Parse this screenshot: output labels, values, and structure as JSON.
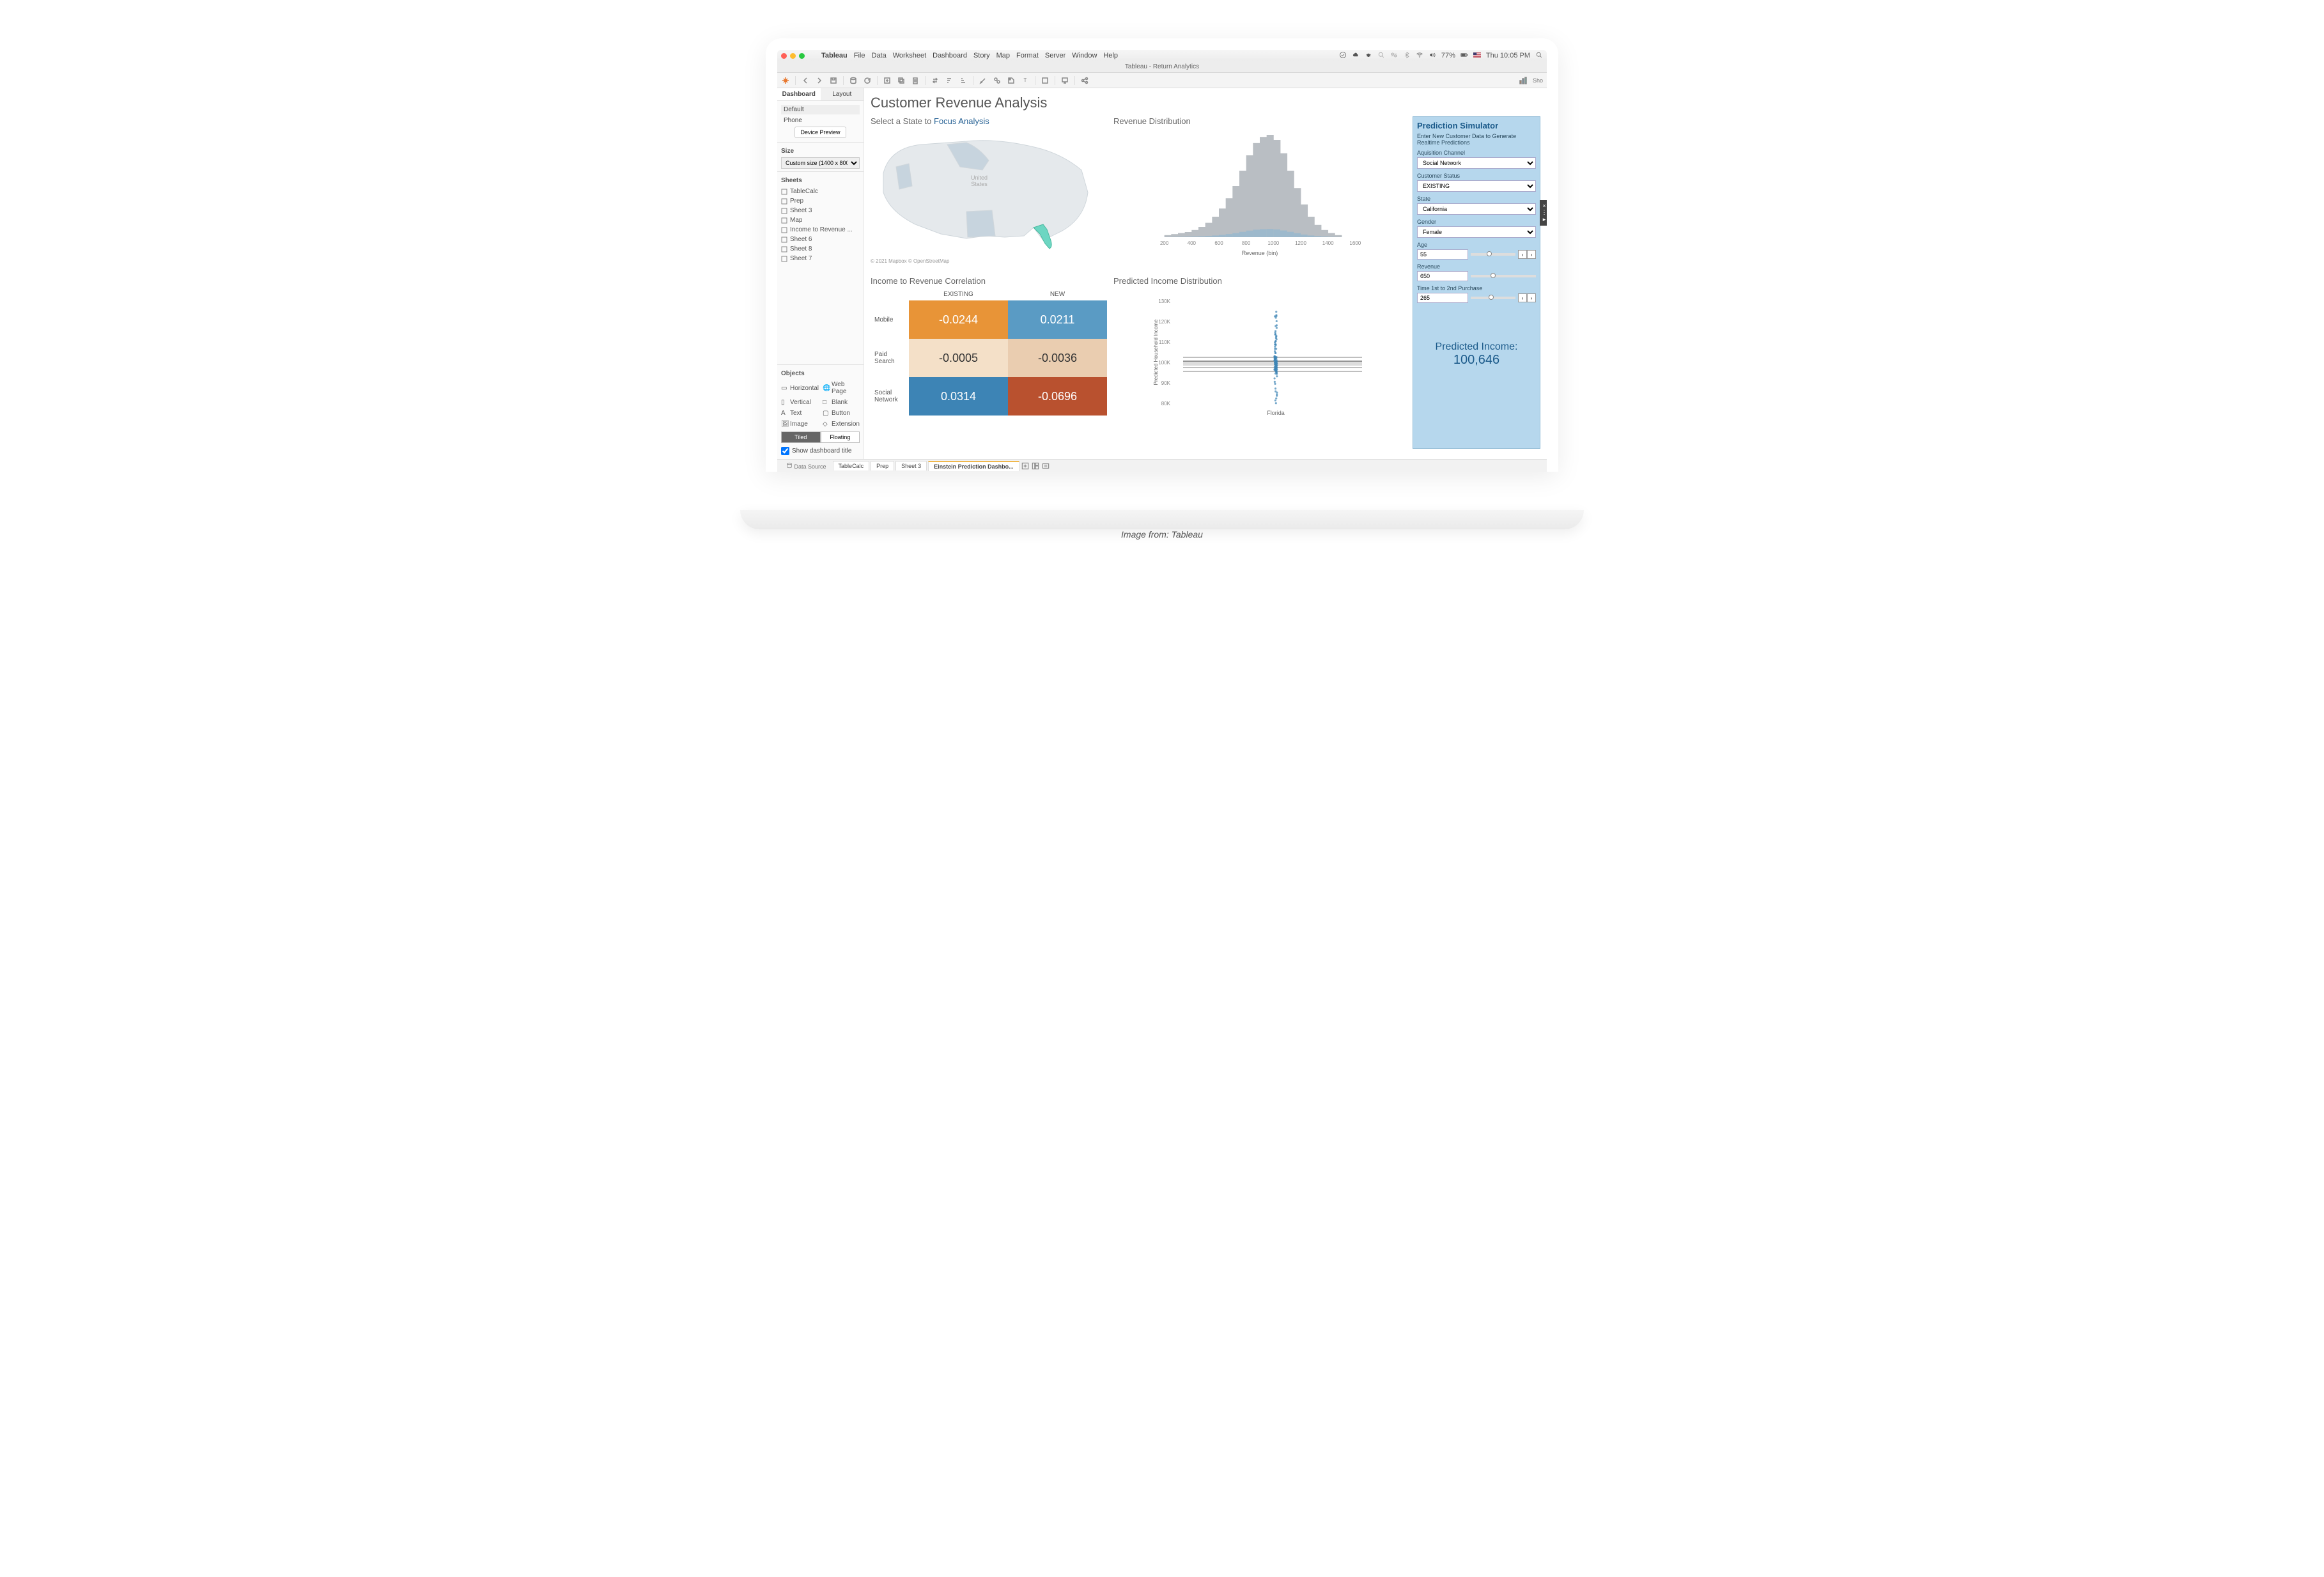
{
  "caption": "Image from: Tableau",
  "menubar": {
    "app": "Tableau",
    "items": [
      "File",
      "Data",
      "Worksheet",
      "Dashboard",
      "Story",
      "Map",
      "Format",
      "Server",
      "Window",
      "Help"
    ],
    "battery": "77%",
    "clock": "Thu 10:05 PM",
    "traffic_colors": [
      "#ff5f57",
      "#febc2e",
      "#28c840"
    ]
  },
  "window_title": "Tableau - Return Analytics",
  "toolbar_show_me": "Sho",
  "leftpanel": {
    "tabs": [
      "Dashboard",
      "Layout"
    ],
    "default_label": "Default",
    "phone_label": "Phone",
    "device_preview": "Device Preview",
    "size_hdr": "Size",
    "size_value": "Custom size (1400 x 800)",
    "sheets_hdr": "Sheets",
    "sheets": [
      "TableCalc",
      "Prep",
      "Sheet 3",
      "Map",
      "Income to Revenue ...",
      "Sheet 6",
      "Sheet 8",
      "Sheet 7"
    ],
    "objects_hdr": "Objects",
    "objects": [
      "Horizontal",
      "Web Page",
      "Vertical",
      "Blank",
      "Text",
      "Button",
      "Image",
      "Extension"
    ],
    "tiled": "Tiled",
    "floating": "Floating",
    "show_title": "Show dashboard title"
  },
  "dashboard": {
    "title": "Customer Revenue Analysis",
    "map": {
      "title_a": "Select a State to ",
      "title_b": "Focus Analysis",
      "credit": "© 2021 Mapbox © OpenStreetMap",
      "center_label": "United\nStates",
      "highlight_color": "#6dd6c2",
      "base_color": "#e5e9ec",
      "accent_color": "#c7d4de"
    },
    "histogram": {
      "title": "Revenue Distribution",
      "type": "histogram",
      "xlabel": "Revenue (bin)",
      "xticks": [
        200,
        400,
        600,
        800,
        1000,
        1200,
        1400,
        1600
      ],
      "bar_color": "#b9bec3",
      "accent_color": "#9db9cc",
      "bins": [
        {
          "x": 200,
          "h": 2
        },
        {
          "x": 250,
          "h": 3
        },
        {
          "x": 300,
          "h": 4
        },
        {
          "x": 350,
          "h": 5
        },
        {
          "x": 400,
          "h": 7
        },
        {
          "x": 450,
          "h": 10
        },
        {
          "x": 500,
          "h": 14
        },
        {
          "x": 550,
          "h": 20
        },
        {
          "x": 600,
          "h": 28
        },
        {
          "x": 650,
          "h": 38
        },
        {
          "x": 700,
          "h": 50
        },
        {
          "x": 750,
          "h": 65
        },
        {
          "x": 800,
          "h": 80
        },
        {
          "x": 850,
          "h": 92
        },
        {
          "x": 900,
          "h": 98
        },
        {
          "x": 950,
          "h": 100
        },
        {
          "x": 1000,
          "h": 95
        },
        {
          "x": 1050,
          "h": 82
        },
        {
          "x": 1100,
          "h": 65
        },
        {
          "x": 1150,
          "h": 48
        },
        {
          "x": 1200,
          "h": 32
        },
        {
          "x": 1250,
          "h": 20
        },
        {
          "x": 1300,
          "h": 12
        },
        {
          "x": 1350,
          "h": 7
        },
        {
          "x": 1400,
          "h": 4
        },
        {
          "x": 1450,
          "h": 2
        }
      ]
    },
    "correlation": {
      "title": "Income to Revenue Correlation",
      "col_headers": [
        "EXISTING",
        "NEW"
      ],
      "row_headers": [
        "Mobile",
        "Paid Search",
        "Social Network"
      ],
      "cells": [
        [
          {
            "v": "-0.0244",
            "bg": "#e89437",
            "fg": "#ffffff"
          },
          {
            "v": "0.0211",
            "bg": "#5a9bc4",
            "fg": "#ffffff"
          }
        ],
        [
          {
            "v": "-0.0005",
            "bg": "#f4e0c8",
            "fg": "#333333"
          },
          {
            "v": "-0.0036",
            "bg": "#eacdb0",
            "fg": "#333333"
          }
        ],
        [
          {
            "v": "0.0314",
            "bg": "#3d84b5",
            "fg": "#ffffff"
          },
          {
            "v": "-0.0696",
            "bg": "#b9512f",
            "fg": "#ffffff"
          }
        ]
      ]
    },
    "scatter": {
      "title": "Predicted Income Distribution",
      "ylabel": "Predicted Household Income",
      "yticks": [
        "130K",
        "120K",
        "110K",
        "100K",
        "90K",
        "80K"
      ],
      "xlabel": "Florida",
      "point_color": "#3d84b5",
      "band_color": "#555555"
    },
    "simulator": {
      "title": "Prediction Simulator",
      "subtitle": "Enter New Customer Data to Generate Realtime Predictions",
      "fields": {
        "acq_channel": {
          "label": "Aquisition Channel",
          "value": "Social Network"
        },
        "status": {
          "label": "Customer Status",
          "value": "EXISTING"
        },
        "state": {
          "label": "State",
          "value": "California"
        },
        "gender": {
          "label": "Gender",
          "value": "Female"
        },
        "age": {
          "label": "Age",
          "value": "55"
        },
        "revenue": {
          "label": "Revenue",
          "value": "650"
        },
        "time12": {
          "label": "Time 1st to 2nd Purchase",
          "value": "265"
        }
      },
      "predicted_label": "Predicted Income:",
      "predicted_value": "100,646",
      "bg": "#b6d7ed"
    }
  },
  "sheet_tabs": {
    "data_source": "Data Source",
    "tabs": [
      "TableCalc",
      "Prep",
      "Sheet 3",
      "Einstein Prediction Dashbo..."
    ],
    "active_index": 3
  }
}
